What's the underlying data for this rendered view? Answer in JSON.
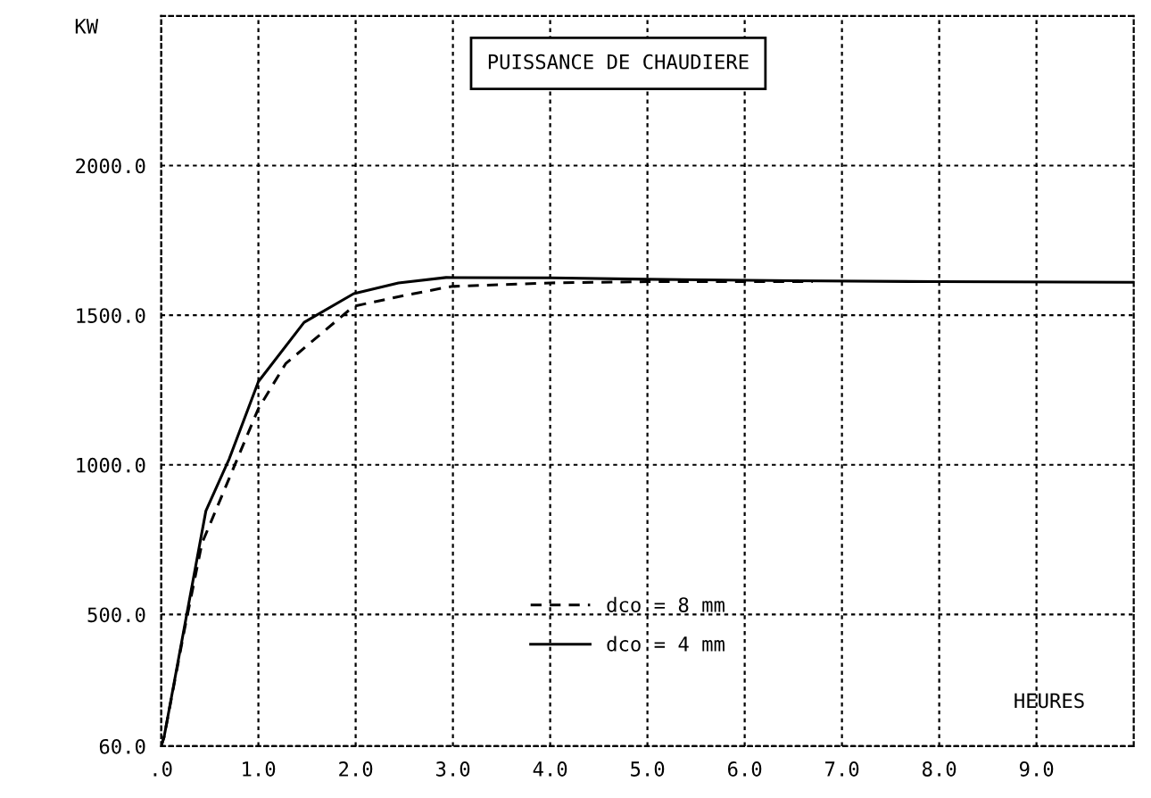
{
  "chart_data": {
    "type": "line",
    "title": "PUISSANCE DE CHAUDIERE",
    "xlabel": "HEURES",
    "ylabel": "KW",
    "xlim": [
      0,
      10
    ],
    "ylim": [
      60,
      2500
    ],
    "xticks": [
      {
        "value": 0,
        "label": ".0"
      },
      {
        "value": 1,
        "label": "1.0"
      },
      {
        "value": 2,
        "label": "2.0"
      },
      {
        "value": 3,
        "label": "3.0"
      },
      {
        "value": 4,
        "label": "4.0"
      },
      {
        "value": 5,
        "label": "5.0"
      },
      {
        "value": 6,
        "label": "6.0"
      },
      {
        "value": 7,
        "label": "7.0"
      },
      {
        "value": 8,
        "label": "8.0"
      },
      {
        "value": 9,
        "label": "9.0"
      }
    ],
    "yticks": [
      {
        "value": 60,
        "label": "60.0"
      },
      {
        "value": 500,
        "label": "500.0"
      },
      {
        "value": 1000,
        "label": "1000.0"
      },
      {
        "value": 1500,
        "label": "1500.0"
      },
      {
        "value": 2000,
        "label": "2000.0"
      }
    ],
    "grid": true,
    "legend": "bottom",
    "series": [
      {
        "name": "dco = 8 mm",
        "color": "#000000",
        "line_style": "dashed",
        "x": [
          0,
          0.03,
          0.24,
          0.42,
          1.0,
          1.28,
          1.98,
          2.5,
          2.98,
          4.0,
          5.0,
          6.0,
          6.7
        ],
        "values": [
          60,
          90,
          450,
          738,
          1188,
          1338,
          1530,
          1566,
          1596,
          1608,
          1612,
          1612,
          1612
        ]
      },
      {
        "name": "dco = 4 mm",
        "color": "#000000",
        "line_style": "solid",
        "x": [
          0,
          0.03,
          0.46,
          0.7,
          1.0,
          1.47,
          1.98,
          2.44,
          2.93,
          4.0,
          5.0,
          6.5,
          8.0,
          10.0
        ],
        "values": [
          60,
          90,
          846,
          1020,
          1278,
          1476,
          1572,
          1608,
          1626,
          1625,
          1620,
          1615,
          1612,
          1610
        ]
      }
    ]
  }
}
